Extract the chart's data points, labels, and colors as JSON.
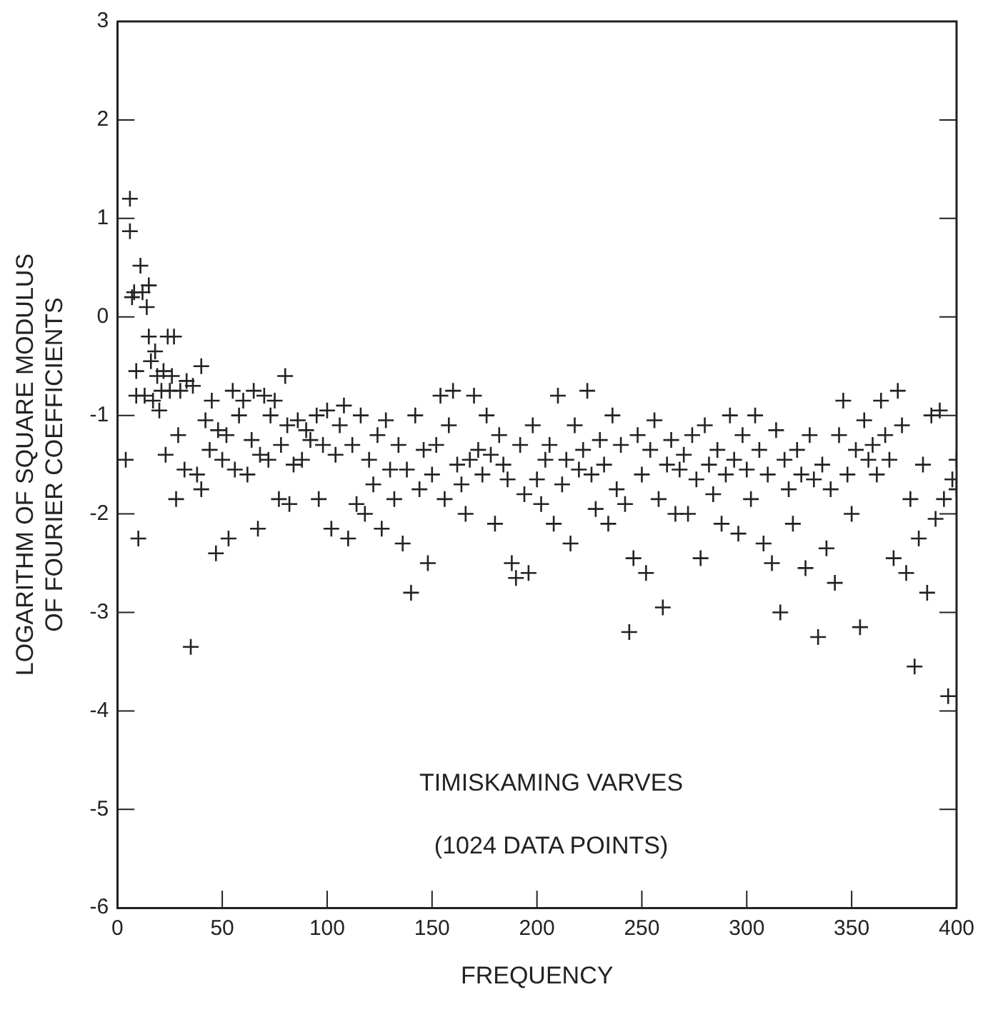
{
  "chart_data": {
    "type": "scatter",
    "xlabel": "FREQUENCY",
    "ylabel": "LOGARITHM OF SQUARE MODULUS OF FOURIER COEFFICIENTS",
    "annotations": [
      "TIMISKAMING VARVES",
      "(1024 DATA POINTS)"
    ],
    "xlim": [
      0,
      400
    ],
    "xticks": [
      0,
      50,
      100,
      150,
      200,
      250,
      300,
      350,
      400
    ],
    "ylim": [
      -6,
      3
    ],
    "yticks": [
      -6,
      -5,
      -4,
      -3,
      -2,
      -1,
      0,
      1,
      2,
      3
    ],
    "grid": false,
    "legend": false,
    "marker": "cross",
    "series": [
      {
        "color": "#222222",
        "x": [
          4,
          6,
          6,
          7,
          8,
          9,
          9,
          10,
          11,
          12,
          13,
          14,
          15,
          15,
          16,
          17,
          18,
          19,
          20,
          21,
          22,
          23,
          24,
          25,
          26,
          27,
          28,
          29,
          30,
          32,
          33,
          35,
          36,
          38,
          40,
          40,
          42,
          44,
          45,
          47,
          48,
          50,
          52,
          53,
          55,
          56,
          58,
          60,
          62,
          64,
          65,
          67,
          68,
          70,
          72,
          73,
          75,
          77,
          78,
          80,
          81,
          82,
          84,
          86,
          88,
          90,
          92,
          95,
          96,
          98,
          100,
          102,
          104,
          106,
          108,
          110,
          112,
          114,
          116,
          118,
          120,
          122,
          124,
          126,
          128,
          130,
          132,
          134,
          136,
          138,
          140,
          142,
          144,
          146,
          148,
          150,
          152,
          154,
          156,
          158,
          160,
          162,
          164,
          166,
          168,
          170,
          172,
          174,
          176,
          178,
          180,
          182,
          184,
          186,
          188,
          190,
          192,
          194,
          196,
          198,
          200,
          202,
          204,
          206,
          208,
          210,
          212,
          214,
          216,
          218,
          220,
          222,
          224,
          226,
          228,
          230,
          232,
          234,
          236,
          238,
          240,
          242,
          244,
          246,
          248,
          250,
          252,
          254,
          256,
          258,
          260,
          262,
          264,
          266,
          268,
          270,
          272,
          274,
          276,
          278,
          280,
          282,
          284,
          286,
          288,
          290,
          292,
          294,
          296,
          298,
          300,
          302,
          304,
          306,
          308,
          310,
          312,
          314,
          316,
          318,
          320,
          322,
          324,
          326,
          328,
          330,
          332,
          334,
          336,
          338,
          340,
          342,
          344,
          346,
          348,
          350,
          352,
          354,
          356,
          358,
          360,
          362,
          364,
          366,
          368,
          370,
          372,
          374,
          376,
          378,
          380,
          382,
          384,
          386,
          388,
          390,
          392,
          394,
          396,
          398,
          400,
          400
        ],
        "values": [
          -1.45,
          1.2,
          0.87,
          0.2,
          0.25,
          -0.55,
          -0.8,
          -2.25,
          0.52,
          0.25,
          -0.8,
          0.1,
          0.32,
          -0.2,
          -0.45,
          -0.85,
          -0.35,
          -0.6,
          -0.95,
          -0.75,
          -0.55,
          -1.4,
          -0.2,
          -0.75,
          -0.6,
          -0.2,
          -1.85,
          -1.2,
          -0.75,
          -1.55,
          -0.65,
          -3.35,
          -0.7,
          -1.6,
          -1.75,
          -0.5,
          -1.05,
          -1.35,
          -0.85,
          -2.4,
          -1.15,
          -1.45,
          -1.2,
          -2.25,
          -0.75,
          -1.55,
          -1.0,
          -0.85,
          -1.6,
          -1.25,
          -0.75,
          -2.15,
          -1.4,
          -0.8,
          -1.45,
          -1.0,
          -0.85,
          -1.85,
          -1.3,
          -0.6,
          -1.1,
          -1.9,
          -1.5,
          -1.05,
          -1.45,
          -1.15,
          -1.25,
          -1.0,
          -1.85,
          -1.3,
          -0.95,
          -2.15,
          -1.4,
          -1.1,
          -0.9,
          -2.25,
          -1.3,
          -1.9,
          -1.0,
          -2.0,
          -1.45,
          -1.7,
          -1.2,
          -2.15,
          -1.05,
          -1.55,
          -1.85,
          -1.3,
          -2.3,
          -1.55,
          -2.8,
          -1.0,
          -1.75,
          -1.35,
          -2.5,
          -1.6,
          -1.3,
          -0.8,
          -1.85,
          -1.1,
          -0.75,
          -1.5,
          -1.7,
          -2.0,
          -1.45,
          -0.8,
          -1.35,
          -1.6,
          -1.0,
          -1.4,
          -2.1,
          -1.2,
          -1.5,
          -1.65,
          -2.5,
          -2.65,
          -1.3,
          -1.8,
          -2.6,
          -1.1,
          -1.65,
          -1.9,
          -1.45,
          -1.3,
          -2.1,
          -0.8,
          -1.7,
          -1.45,
          -2.3,
          -1.1,
          -1.55,
          -1.35,
          -0.75,
          -1.6,
          -1.95,
          -1.25,
          -1.5,
          -2.1,
          -1.0,
          -1.75,
          -1.3,
          -1.9,
          -3.2,
          -2.45,
          -1.2,
          -1.6,
          -2.6,
          -1.35,
          -1.05,
          -1.85,
          -2.95,
          -1.5,
          -1.25,
          -2.0,
          -1.55,
          -1.4,
          -2.0,
          -1.2,
          -1.65,
          -2.45,
          -1.1,
          -1.5,
          -1.8,
          -1.35,
          -2.1,
          -1.6,
          -1.0,
          -1.45,
          -2.2,
          -1.2,
          -1.55,
          -1.85,
          -1.0,
          -1.35,
          -2.3,
          -1.6,
          -2.5,
          -1.15,
          -3.0,
          -1.45,
          -1.75,
          -2.1,
          -1.35,
          -1.6,
          -2.55,
          -1.2,
          -1.65,
          -3.25,
          -1.5,
          -2.35,
          -1.75,
          -2.7,
          -1.2,
          -0.85,
          -1.6,
          -2.0,
          -1.35,
          -3.15,
          -1.05,
          -1.45,
          -1.3,
          -1.6,
          -0.85,
          -1.2,
          -1.45,
          -2.45,
          -0.75,
          -1.1,
          -2.6,
          -1.85,
          -3.55,
          -2.25,
          -1.5,
          -2.8,
          -1.0,
          -2.05,
          -0.95,
          -1.85,
          -3.85,
          -1.65,
          -1.45,
          -1.75
        ]
      }
    ]
  }
}
